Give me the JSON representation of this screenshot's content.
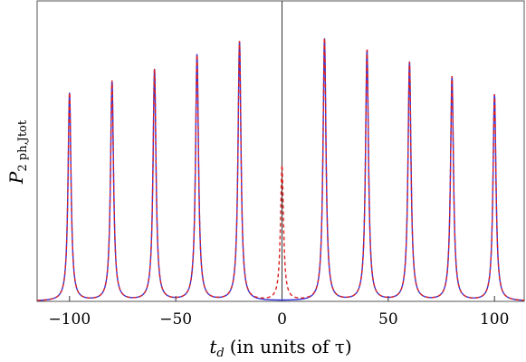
{
  "chart_data": {
    "type": "line",
    "xlabel_var": "t",
    "xlabel_sub": "d",
    "xlabel_rest": "(in units of τ)",
    "ylabel_var": "P",
    "ylabel_sub": "2 ph,Jtot",
    "xlim": [
      -112,
      112
    ],
    "ylim": [
      0,
      1.0
    ],
    "x_ticks": [
      -100,
      -50,
      0,
      50,
      100
    ],
    "x_tick_labels": [
      "−100",
      "−50",
      "0",
      "50",
      "100"
    ],
    "show_y_tick_labels": false,
    "zero_line": true,
    "series": [
      {
        "style": "solid",
        "color": "#3333dd",
        "peak_width": 0.85,
        "peaks": [
          {
            "x": -100,
            "height": 0.71
          },
          {
            "x": -80,
            "height": 0.75
          },
          {
            "x": -60,
            "height": 0.79
          },
          {
            "x": -40,
            "height": 0.84
          },
          {
            "x": -20,
            "height": 0.885
          },
          {
            "x": 20,
            "height": 0.895
          },
          {
            "x": 40,
            "height": 0.855
          },
          {
            "x": 60,
            "height": 0.815
          },
          {
            "x": 80,
            "height": 0.765
          },
          {
            "x": 100,
            "height": 0.705
          }
        ]
      },
      {
        "style": "dashed",
        "color": "#dd2222",
        "peak_width": 0.85,
        "peaks": [
          {
            "x": -100,
            "height": 0.71
          },
          {
            "x": -80,
            "height": 0.75
          },
          {
            "x": -60,
            "height": 0.79
          },
          {
            "x": -40,
            "height": 0.84
          },
          {
            "x": -20,
            "height": 0.885
          },
          {
            "x": 0,
            "height": 0.46
          },
          {
            "x": 20,
            "height": 0.895
          },
          {
            "x": 40,
            "height": 0.855
          },
          {
            "x": 60,
            "height": 0.815
          },
          {
            "x": 80,
            "height": 0.765
          },
          {
            "x": 100,
            "height": 0.705
          }
        ]
      }
    ]
  }
}
